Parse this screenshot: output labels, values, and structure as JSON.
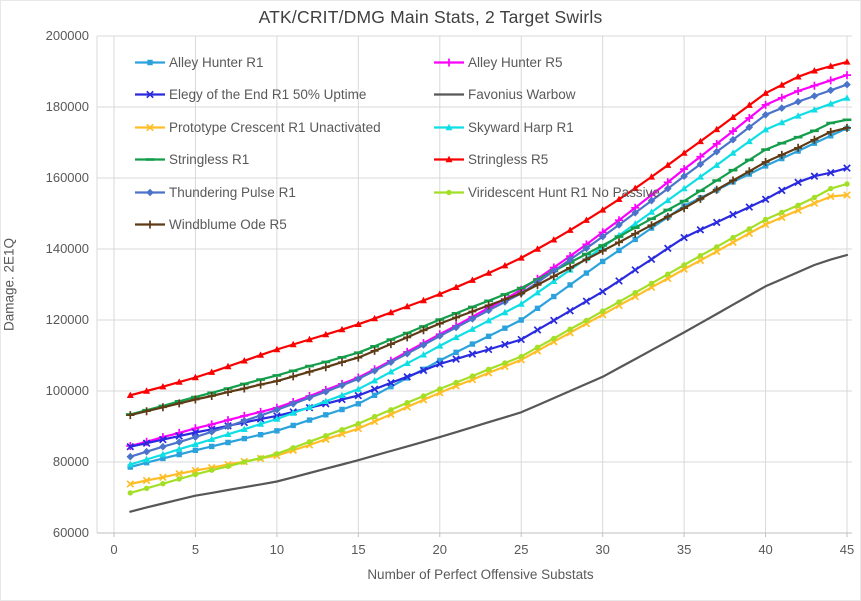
{
  "title": "ATK/CRIT/DMG Main Stats, 2 Target Swirls",
  "x_axis": {
    "title": "Number of Perfect Offensive Substats",
    "ticks": [
      0,
      5,
      10,
      15,
      20,
      25,
      30,
      35,
      40,
      45
    ],
    "min": 0,
    "max": 45
  },
  "y_axis": {
    "title": "Damage. 2E1Q",
    "ticks": [
      60000,
      80000,
      100000,
      120000,
      140000,
      160000,
      180000,
      200000
    ],
    "min": 60000,
    "max": 200000
  },
  "style_colors": {
    "gridline": "#D9D9D9",
    "axis_line": "#BFBFBF",
    "title_text": "#404040",
    "label_text": "#595959"
  },
  "chart_data": {
    "type": "line",
    "title": "ATK/CRIT/DMG Main Stats, 2 Target Swirls",
    "xlabel": "Number of Perfect Offensive Substats",
    "ylabel": "Damage. 2E1Q",
    "xlim": [
      0,
      45
    ],
    "ylim": [
      60000,
      200000
    ],
    "grid": true,
    "legend_position": "top-left-inside-two-columns",
    "x": [
      1,
      2,
      3,
      4,
      5,
      6,
      7,
      8,
      9,
      10,
      11,
      12,
      13,
      14,
      15,
      16,
      17,
      18,
      19,
      20,
      21,
      22,
      23,
      24,
      25,
      26,
      27,
      28,
      29,
      30,
      31,
      32,
      33,
      34,
      35,
      36,
      37,
      38,
      39,
      40,
      41,
      42,
      43,
      44,
      45
    ],
    "series": [
      {
        "name": "Alley Hunter R1",
        "color": "#2BA2DC",
        "marker": "square",
        "values": [
          78600,
          79800,
          81000,
          82100,
          83300,
          84400,
          85500,
          86600,
          87700,
          88800,
          90300,
          91800,
          93300,
          94800,
          96400,
          98800,
          101200,
          103700,
          106100,
          108600,
          110900,
          113200,
          115400,
          117700,
          120000,
          123300,
          126600,
          129900,
          133200,
          136500,
          139600,
          142700,
          145900,
          149000,
          152100,
          154400,
          156600,
          158900,
          161100,
          163400,
          165500,
          167600,
          169800,
          171900,
          174000
        ]
      },
      {
        "name": "Alley Hunter R5",
        "color": "#FB00FB",
        "marker": "plus",
        "values": [
          84500,
          85700,
          87000,
          88200,
          89500,
          90600,
          91800,
          93000,
          94100,
          95300,
          96900,
          98600,
          100300,
          102000,
          103800,
          106100,
          108500,
          111000,
          113500,
          116000,
          118400,
          120900,
          123400,
          125900,
          128500,
          131600,
          134800,
          138000,
          141300,
          144700,
          148100,
          151600,
          155200,
          158800,
          162500,
          166000,
          169600,
          173200,
          176900,
          180600,
          182600,
          184500,
          186000,
          187500,
          189000
        ]
      },
      {
        "name": "Elegy of the End R1 50% Uptime",
        "color": "#2A2ADF",
        "marker": "x",
        "values": [
          84300,
          85300,
          86300,
          87300,
          88300,
          89200,
          90200,
          91100,
          92100,
          93000,
          94100,
          95300,
          96400,
          97600,
          98700,
          100500,
          102300,
          104000,
          105800,
          107600,
          109000,
          110400,
          111700,
          113100,
          114500,
          117200,
          119900,
          122600,
          125300,
          128000,
          131000,
          134100,
          137100,
          140200,
          143200,
          145400,
          147500,
          149700,
          151800,
          154000,
          156500,
          158800,
          160500,
          161500,
          162800
        ]
      },
      {
        "name": "Favonius Warbow",
        "color": "#575757",
        "marker": "none",
        "values": [
          66000,
          67200,
          68300,
          69400,
          70500,
          71300,
          72100,
          72900,
          73700,
          74500,
          75700,
          76900,
          78100,
          79300,
          80500,
          81800,
          83100,
          84400,
          85700,
          87000,
          88400,
          89800,
          91200,
          92600,
          94000,
          96000,
          98000,
          100000,
          102000,
          104000,
          106500,
          109000,
          111500,
          114000,
          116500,
          119100,
          121700,
          124300,
          126900,
          129500,
          131500,
          133500,
          135500,
          137000,
          138300
        ]
      },
      {
        "name": "Prototype Crescent R1 Unactivated",
        "color": "#FFBE28",
        "marker": "x",
        "values": [
          73800,
          74800,
          75700,
          76700,
          77600,
          78400,
          79300,
          80100,
          81000,
          81800,
          83300,
          84800,
          86400,
          87900,
          89400,
          91400,
          93400,
          95500,
          97500,
          99500,
          101400,
          103200,
          105100,
          106900,
          108800,
          111300,
          113900,
          116400,
          119000,
          121500,
          124100,
          126600,
          129200,
          131700,
          134300,
          136800,
          139300,
          141900,
          144400,
          146900,
          148900,
          150900,
          152900,
          154800,
          155200
        ]
      },
      {
        "name": "Skyward Harp R1",
        "color": "#0FDEE4",
        "marker": "triangle",
        "values": [
          79300,
          80700,
          82100,
          83600,
          85000,
          86400,
          87800,
          89200,
          90700,
          92100,
          93800,
          95400,
          97100,
          98800,
          100500,
          102900,
          105400,
          107800,
          110200,
          112700,
          115100,
          117400,
          119800,
          122100,
          124500,
          127700,
          130900,
          134100,
          137300,
          140500,
          143800,
          147100,
          150400,
          153700,
          157000,
          160300,
          163600,
          167000,
          170300,
          173600,
          175600,
          177500,
          179200,
          180900,
          182500
        ]
      },
      {
        "name": "Stringless R1",
        "color": "#149E4C",
        "marker": "dash",
        "values": [
          93400,
          94600,
          95800,
          97100,
          98300,
          99500,
          100700,
          102000,
          103200,
          104400,
          105700,
          107000,
          108200,
          109500,
          110800,
          112600,
          114500,
          116300,
          118200,
          120100,
          121900,
          123700,
          125400,
          127200,
          129000,
          131400,
          133800,
          136200,
          138600,
          141000,
          143500,
          146000,
          148500,
          151000,
          153500,
          156400,
          159300,
          162200,
          165100,
          168000,
          169800,
          171500,
          173300,
          175500,
          176400
        ]
      },
      {
        "name": "Stringless R5",
        "color": "#FA0000",
        "marker": "triangle",
        "values": [
          98800,
          100000,
          101200,
          102500,
          103800,
          105300,
          106900,
          108500,
          110100,
          111700,
          113100,
          114500,
          115900,
          117300,
          118800,
          120400,
          122100,
          123800,
          125500,
          127300,
          129200,
          131200,
          133200,
          135300,
          137500,
          140000,
          142600,
          145300,
          148100,
          151000,
          154000,
          157100,
          160300,
          163600,
          167000,
          170300,
          173700,
          177100,
          180500,
          183900,
          186200,
          188500,
          190200,
          191500,
          192700
        ]
      },
      {
        "name": "Thundering Pulse R1",
        "color": "#4B73C9",
        "marker": "diamond",
        "values": [
          81500,
          82900,
          84300,
          85600,
          87000,
          88500,
          90000,
          91600,
          93100,
          94700,
          96400,
          98100,
          99800,
          101600,
          103400,
          105700,
          108100,
          110500,
          113000,
          115500,
          117900,
          120300,
          122700,
          125100,
          127500,
          130600,
          133800,
          137000,
          140200,
          143500,
          146800,
          150200,
          153600,
          157000,
          160500,
          163900,
          167400,
          170800,
          174300,
          177800,
          179700,
          181500,
          183100,
          184700,
          186300
        ]
      },
      {
        "name": "Viridescent Hunt R1 No Passive",
        "color": "#A2DF26",
        "marker": "circle",
        "values": [
          71300,
          72600,
          73900,
          75200,
          76500,
          77700,
          78800,
          80000,
          81100,
          82300,
          84000,
          85700,
          87400,
          89100,
          90800,
          92800,
          94700,
          96700,
          98600,
          100600,
          102400,
          104200,
          106100,
          107900,
          109700,
          112300,
          114800,
          117400,
          119900,
          122500,
          125100,
          127700,
          130300,
          132900,
          135500,
          138100,
          140600,
          143200,
          145700,
          148300,
          150300,
          152300,
          154500,
          157000,
          158300
        ]
      },
      {
        "name": "Windblume Ode R5",
        "color": "#5E3A15",
        "marker": "plus",
        "values": [
          93200,
          94300,
          95400,
          96500,
          97600,
          98600,
          99700,
          100700,
          101800,
          102800,
          104100,
          105400,
          106700,
          108100,
          109400,
          111300,
          113200,
          115100,
          117100,
          119000,
          120700,
          122400,
          124100,
          125800,
          127500,
          129900,
          132300,
          134700,
          137100,
          139500,
          141900,
          144300,
          146700,
          149100,
          151500,
          154100,
          156700,
          159300,
          161900,
          164500,
          166500,
          168500,
          170800,
          173000,
          174100
        ]
      }
    ]
  }
}
